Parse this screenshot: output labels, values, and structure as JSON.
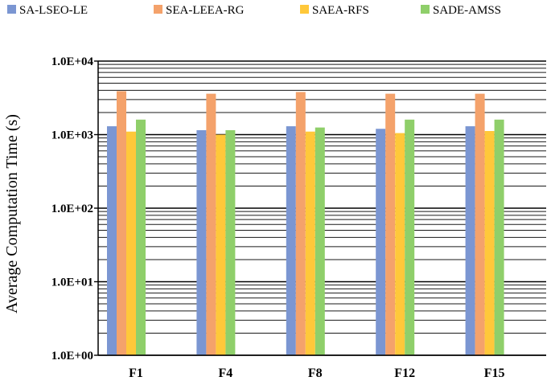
{
  "chart_data": {
    "type": "bar",
    "title": "",
    "xlabel": "",
    "ylabel": "Average Computation Time (s)",
    "y_scale": "log",
    "ylim": [
      1,
      10000
    ],
    "y_ticks": [
      1,
      10,
      100,
      1000,
      10000
    ],
    "y_tick_labels": [
      "1.0E+00",
      "1.0E+01",
      "1.0E+02",
      "1.0E+03",
      "1.0E+04"
    ],
    "grid": true,
    "legend_position": "top",
    "categories": [
      "F1",
      "F4",
      "F8",
      "F12",
      "F15"
    ],
    "series": [
      {
        "name": "SA-LSEO-LE",
        "color": "#7b96d2",
        "values": [
          1300,
          1150,
          1300,
          1200,
          1300
        ]
      },
      {
        "name": "SEA-LEEA-RG",
        "color": "#f4a26b",
        "values": [
          3900,
          3600,
          3800,
          3600,
          3600
        ]
      },
      {
        "name": "SAEA-RFS",
        "color": "#ffc83a",
        "values": [
          1100,
          1000,
          1100,
          1050,
          1120
        ]
      },
      {
        "name": "SADE-AMSS",
        "color": "#8fcf6a",
        "values": [
          1600,
          1150,
          1250,
          1600,
          1600
        ]
      }
    ]
  }
}
